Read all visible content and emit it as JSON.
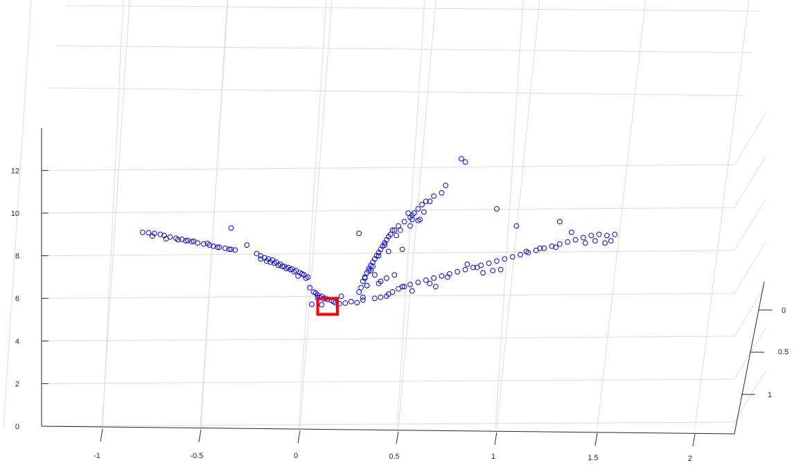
{
  "chart_data": {
    "type": "scatter",
    "projection": "3d-perspective",
    "grid": true,
    "marker": "open-circle",
    "marker_color": "#0000ff",
    "highlight_box_color": "#ff0000",
    "x_ticks": [
      "-1",
      "-0.5",
      "0",
      "0.5",
      "1",
      "1.5",
      "2"
    ],
    "y_ticks": [
      "0",
      "0.5",
      "1"
    ],
    "z_ticks": [
      "0",
      "2",
      "4",
      "6",
      "8",
      "10",
      "12"
    ],
    "xlim": [
      -1.3,
      2.2
    ],
    "ylim": [
      0,
      1.25
    ],
    "zlim": [
      0,
      14
    ],
    "highlight_region": {
      "x": [
        0.09,
        0.19
      ],
      "z": [
        5.25,
        6.0
      ]
    },
    "series": [
      {
        "points": [
          [
            -0.8,
            9.1
          ],
          [
            -0.77,
            9.08
          ],
          [
            -0.74,
            9.05
          ],
          [
            -0.71,
            9.0
          ],
          [
            -0.69,
            8.95
          ],
          [
            -0.66,
            8.88
          ],
          [
            -0.63,
            8.82
          ],
          [
            -0.6,
            8.77
          ],
          [
            -0.57,
            8.72
          ],
          [
            -0.55,
            8.66
          ],
          [
            -0.52,
            8.6
          ],
          [
            -0.49,
            8.55
          ],
          [
            -0.46,
            8.5
          ],
          [
            -0.44,
            8.45
          ],
          [
            -0.41,
            8.4
          ],
          [
            -0.38,
            8.35
          ],
          [
            -0.36,
            8.3
          ],
          [
            -0.33,
            8.27
          ],
          [
            -0.68,
            8.8
          ],
          [
            -0.62,
            8.75
          ],
          [
            -0.54,
            8.68
          ],
          [
            -0.47,
            8.58
          ],
          [
            -0.42,
            8.4
          ],
          [
            -0.35,
            8.3
          ],
          [
            -0.75,
            8.92
          ],
          [
            -0.58,
            8.7
          ],
          [
            -0.27,
            8.5
          ],
          [
            -0.35,
            9.3
          ],
          [
            -0.22,
            8.1
          ],
          [
            -0.2,
            8.0
          ],
          [
            -0.18,
            7.9
          ],
          [
            -0.16,
            7.85
          ],
          [
            -0.14,
            7.8
          ],
          [
            -0.12,
            7.7
          ],
          [
            -0.1,
            7.6
          ],
          [
            -0.08,
            7.5
          ],
          [
            -0.06,
            7.45
          ],
          [
            -0.04,
            7.38
          ],
          [
            -0.02,
            7.3
          ],
          [
            0.0,
            7.2
          ],
          [
            0.02,
            7.1
          ],
          [
            0.04,
            7.0
          ],
          [
            -0.17,
            7.75
          ],
          [
            -0.13,
            7.65
          ],
          [
            -0.11,
            7.55
          ],
          [
            -0.07,
            7.4
          ],
          [
            -0.03,
            7.25
          ],
          [
            0.01,
            7.15
          ],
          [
            -0.2,
            7.85
          ],
          [
            -0.15,
            7.7
          ],
          [
            -0.09,
            7.5
          ],
          [
            -0.05,
            7.35
          ],
          [
            0.03,
            6.95
          ],
          [
            -0.01,
            7.05
          ],
          [
            0.05,
            6.5
          ],
          [
            0.07,
            6.3
          ],
          [
            0.09,
            6.15
          ],
          [
            0.1,
            6.05
          ],
          [
            0.11,
            6.1
          ],
          [
            0.13,
            6.0
          ],
          [
            0.14,
            5.95
          ],
          [
            0.16,
            5.9
          ],
          [
            0.18,
            5.8
          ],
          [
            0.2,
            5.75
          ],
          [
            0.23,
            5.78
          ],
          [
            0.26,
            5.85
          ],
          [
            0.29,
            5.8
          ],
          [
            0.32,
            5.92
          ],
          [
            0.08,
            6.25
          ],
          [
            0.12,
            5.98
          ],
          [
            0.09,
            6.02
          ],
          [
            0.17,
            5.85
          ],
          [
            0.06,
            5.72
          ],
          [
            0.11,
            5.7
          ],
          [
            0.21,
            6.1
          ],
          [
            0.3,
            9.05
          ]
        ]
      },
      {
        "points": [
          [
            0.31,
            6.5
          ],
          [
            0.32,
            6.8
          ],
          [
            0.33,
            7.0
          ],
          [
            0.34,
            7.2
          ],
          [
            0.35,
            7.4
          ],
          [
            0.36,
            7.55
          ],
          [
            0.37,
            7.7
          ],
          [
            0.38,
            7.85
          ],
          [
            0.39,
            8.0
          ],
          [
            0.4,
            8.15
          ],
          [
            0.41,
            8.3
          ],
          [
            0.42,
            8.45
          ],
          [
            0.43,
            8.6
          ],
          [
            0.44,
            8.75
          ],
          [
            0.45,
            8.9
          ],
          [
            0.46,
            9.0
          ],
          [
            0.33,
            6.95
          ],
          [
            0.35,
            7.3
          ],
          [
            0.37,
            7.5
          ],
          [
            0.4,
            8.0
          ],
          [
            0.43,
            8.5
          ],
          [
            0.47,
            9.2
          ],
          [
            0.5,
            9.4
          ],
          [
            0.53,
            9.6
          ],
          [
            0.56,
            9.8
          ],
          [
            0.58,
            10.0
          ],
          [
            0.6,
            10.2
          ],
          [
            0.62,
            10.4
          ],
          [
            0.64,
            10.55
          ],
          [
            0.68,
            10.8
          ],
          [
            0.72,
            10.95
          ],
          [
            0.74,
            11.3
          ],
          [
            0.82,
            12.55
          ],
          [
            0.84,
            12.4
          ],
          [
            0.55,
            10.0
          ],
          [
            0.57,
            9.9
          ],
          [
            0.6,
            9.65
          ],
          [
            0.36,
            7.3
          ],
          [
            0.34,
            6.6
          ],
          [
            0.41,
            6.8
          ],
          [
            0.3,
            6.3
          ],
          [
            0.32,
            6.05
          ],
          [
            0.34,
            6.6
          ],
          [
            0.4,
            6.7
          ],
          [
            0.44,
            6.95
          ],
          [
            0.48,
            7.1
          ],
          [
            0.38,
            7.1
          ],
          [
            0.45,
            8.2
          ],
          [
            0.49,
            8.95
          ],
          [
            0.51,
            9.2
          ],
          [
            0.52,
            8.3
          ],
          [
            0.61,
            9.7
          ],
          [
            0.56,
            9.4
          ],
          [
            0.57,
            9.7
          ],
          [
            0.63,
            10.05
          ],
          [
            0.66,
            10.55
          ],
          [
            0.48,
            9.2
          ]
        ]
      },
      {
        "points": [
          [
            0.38,
            6.0
          ],
          [
            0.41,
            6.05
          ],
          [
            0.44,
            6.1
          ],
          [
            0.47,
            6.3
          ],
          [
            0.5,
            6.45
          ],
          [
            0.53,
            6.55
          ],
          [
            0.56,
            6.65
          ],
          [
            0.6,
            6.75
          ],
          [
            0.64,
            6.85
          ],
          [
            0.68,
            6.95
          ],
          [
            0.72,
            7.05
          ],
          [
            0.76,
            7.15
          ],
          [
            0.8,
            7.25
          ],
          [
            0.84,
            7.35
          ],
          [
            0.88,
            7.45
          ],
          [
            0.92,
            7.55
          ],
          [
            0.96,
            7.65
          ],
          [
            1.0,
            7.75
          ],
          [
            1.04,
            7.85
          ],
          [
            1.08,
            7.95
          ],
          [
            1.12,
            8.05
          ],
          [
            1.16,
            8.15
          ],
          [
            1.2,
            8.25
          ],
          [
            1.24,
            8.35
          ],
          [
            1.28,
            8.45
          ],
          [
            1.32,
            8.55
          ],
          [
            1.36,
            8.65
          ],
          [
            1.4,
            8.75
          ],
          [
            1.44,
            8.85
          ],
          [
            1.48,
            8.95
          ],
          [
            1.52,
            9.0
          ],
          [
            1.56,
            8.95
          ],
          [
            1.6,
            9.0
          ],
          [
            1.45,
            8.6
          ],
          [
            1.5,
            8.7
          ],
          [
            1.55,
            8.6
          ],
          [
            1.58,
            8.7
          ],
          [
            1.38,
            9.1
          ],
          [
            1.32,
            9.6
          ],
          [
            1.1,
            9.4
          ],
          [
            1.0,
            10.2
          ],
          [
            0.98,
            7.3
          ],
          [
            1.02,
            7.35
          ],
          [
            0.85,
            7.6
          ],
          [
            0.75,
            7.0
          ],
          [
            0.66,
            6.7
          ],
          [
            0.45,
            6.2
          ],
          [
            0.52,
            6.55
          ],
          [
            0.57,
            6.35
          ],
          [
            0.69,
            6.55
          ],
          [
            0.93,
            7.2
          ],
          [
            0.9,
            7.45
          ],
          [
            1.15,
            8.2
          ],
          [
            1.22,
            8.35
          ],
          [
            1.3,
            8.4
          ]
        ]
      }
    ]
  }
}
